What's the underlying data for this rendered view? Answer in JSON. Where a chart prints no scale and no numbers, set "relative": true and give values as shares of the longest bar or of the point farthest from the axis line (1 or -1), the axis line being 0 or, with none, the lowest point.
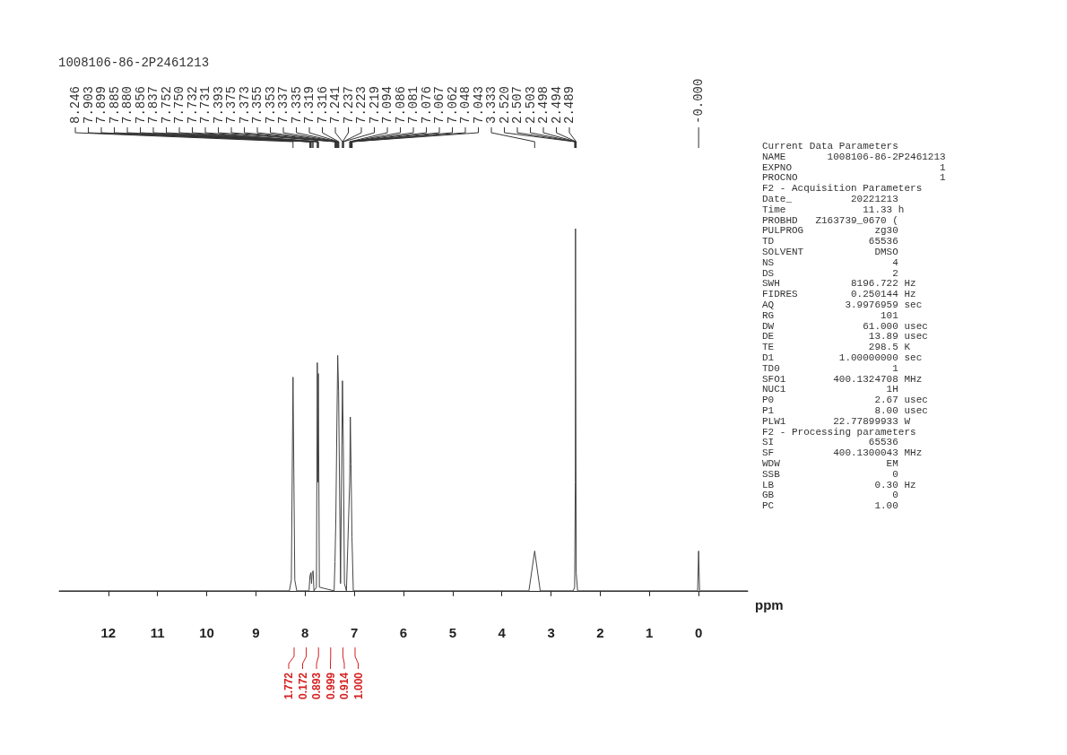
{
  "chart_data": [
    {
      "type": "line",
      "title": "1008106-86-2P2461213",
      "xlabel": "ppm",
      "relative": true,
      "grid": false,
      "marker": "none",
      "line_style": "solid",
      "xlim": [
        13,
        -1
      ],
      "xticks": [
        12,
        11,
        10,
        9,
        8,
        7,
        6,
        5,
        4,
        3,
        2,
        1,
        0
      ],
      "series": [
        {
          "color": "#444444",
          "x": [
            13,
            8.32,
            8.28,
            8.246,
            8.21,
            8.17,
            7.92,
            7.903,
            7.885,
            7.87,
            7.856,
            7.837,
            7.82,
            7.77,
            7.752,
            7.742,
            7.731,
            7.71,
            7.41,
            7.393,
            7.375,
            7.355,
            7.337,
            7.319,
            7.28,
            7.241,
            7.223,
            7.2,
            7.16,
            7.094,
            7.081,
            7.067,
            7.048,
            7.02,
            3.45,
            3.333,
            3.22,
            2.55,
            2.52,
            2.507,
            2.503,
            2.498,
            2.489,
            2.46,
            0.02,
            0,
            -0.02,
            -1
          ],
          "values": [
            0,
            0,
            0.03,
            0.59,
            0.03,
            0,
            0,
            0.04,
            0.05,
            0.02,
            0.05,
            0.055,
            0,
            0.01,
            0.63,
            0.3,
            0.6,
            0.01,
            0,
            0.08,
            0.2,
            0.45,
            0.65,
            0.55,
            0.02,
            0.58,
            0.4,
            0.02,
            0,
            0.3,
            0.48,
            0.35,
            0.15,
            0,
            0,
            0.11,
            0,
            0,
            0.01,
            0.3,
            1,
            0.6,
            0.05,
            0,
            0,
            0.11,
            0,
            0
          ]
        }
      ],
      "annotations": [
        "8.246",
        "7.903",
        "7.899",
        "7.885",
        "7.880",
        "7.856",
        "7.837",
        "7.752",
        "7.750",
        "7.732",
        "7.731",
        "7.393",
        "7.375",
        "7.373",
        "7.355",
        "7.353",
        "7.337",
        "7.335",
        "7.319",
        "7.316",
        "7.241",
        "7.237",
        "7.223",
        "7.219",
        "7.094",
        "7.086",
        "7.081",
        "7.076",
        "7.067",
        "7.062",
        "7.048",
        "7.043",
        "3.333",
        "2.520",
        "2.507",
        "2.503",
        "2.498",
        "2.494",
        "2.489",
        "-0.000"
      ]
    },
    {
      "type": "other",
      "annotations": [
        "1.772",
        "0.172",
        "0.893",
        "0.999",
        "0.914",
        "1.000"
      ]
    },
    {
      "type": "other",
      "annotations": [
        "Current Data Parameters",
        "NAME       1008106-86-2P2461213",
        "EXPNO                         1",
        "PROCNO                        1",
        "F2 - Acquisition Parameters",
        "Date_          20221213",
        "Time             11.33 h",
        "PROBHD   Z163739_0670 (",
        "PULPROG            zg30",
        "TD                65536",
        "SOLVENT            DMSO",
        "NS                    4",
        "DS                    2",
        "SWH            8196.722 Hz",
        "FIDRES         0.250144 Hz",
        "AQ            3.9976959 sec",
        "RG                  101",
        "DW               61.000 usec",
        "DE                13.89 usec",
        "TE                298.5 K",
        "D1           1.00000000 sec",
        "TD0                   1",
        "SFO1        400.1324708 MHz",
        "NUC1                 1H",
        "P0                 2.67 usec",
        "P1                 8.00 usec",
        "PLW1        22.77899933 W",
        "F2 - Processing parameters",
        "SI                65536",
        "SF          400.1300043 MHz",
        "WDW                  EM",
        "SSB                   0",
        "LB                 0.30 Hz",
        "GB                    0",
        "PC                 1.00"
      ]
    }
  ]
}
